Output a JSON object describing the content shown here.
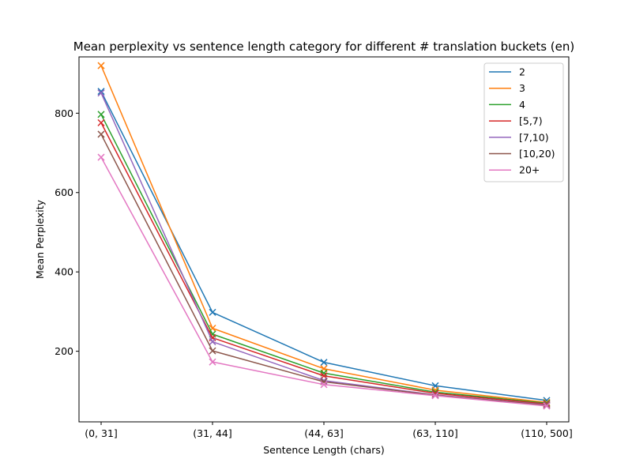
{
  "chart_data": {
    "type": "line",
    "title": "Mean perplexity vs sentence length category for different # translation buckets (en)",
    "xlabel": "Sentence Length (chars)",
    "ylabel": "Mean Perplexity",
    "categories": [
      "(0, 31]",
      "(31, 44]",
      "(44, 63]",
      "(63, 110]",
      "(110, 500]"
    ],
    "yticks": [
      200,
      400,
      600,
      800
    ],
    "ylim": [
      22,
      942
    ],
    "marker": "x",
    "grid": false,
    "legend_position": "top-right",
    "series": [
      {
        "name": "2",
        "color": "#1f77b4",
        "values": [
          855,
          298,
          172,
          113,
          76
        ]
      },
      {
        "name": "3",
        "color": "#ff7f0e",
        "values": [
          920,
          258,
          156,
          102,
          71
        ]
      },
      {
        "name": "4",
        "color": "#2ca02c",
        "values": [
          797,
          243,
          145,
          97,
          69
        ]
      },
      {
        "name": "[5,7)",
        "color": "#d62728",
        "values": [
          776,
          234,
          138,
          94,
          67
        ]
      },
      {
        "name": "[7,10)",
        "color": "#9467bd",
        "values": [
          851,
          224,
          126,
          90,
          65
        ]
      },
      {
        "name": "[10,20)",
        "color": "#8c564b",
        "values": [
          747,
          201,
          123,
          89,
          64
        ]
      },
      {
        "name": "20+",
        "color": "#e377c2",
        "values": [
          689,
          173,
          116,
          88,
          62
        ]
      }
    ]
  }
}
